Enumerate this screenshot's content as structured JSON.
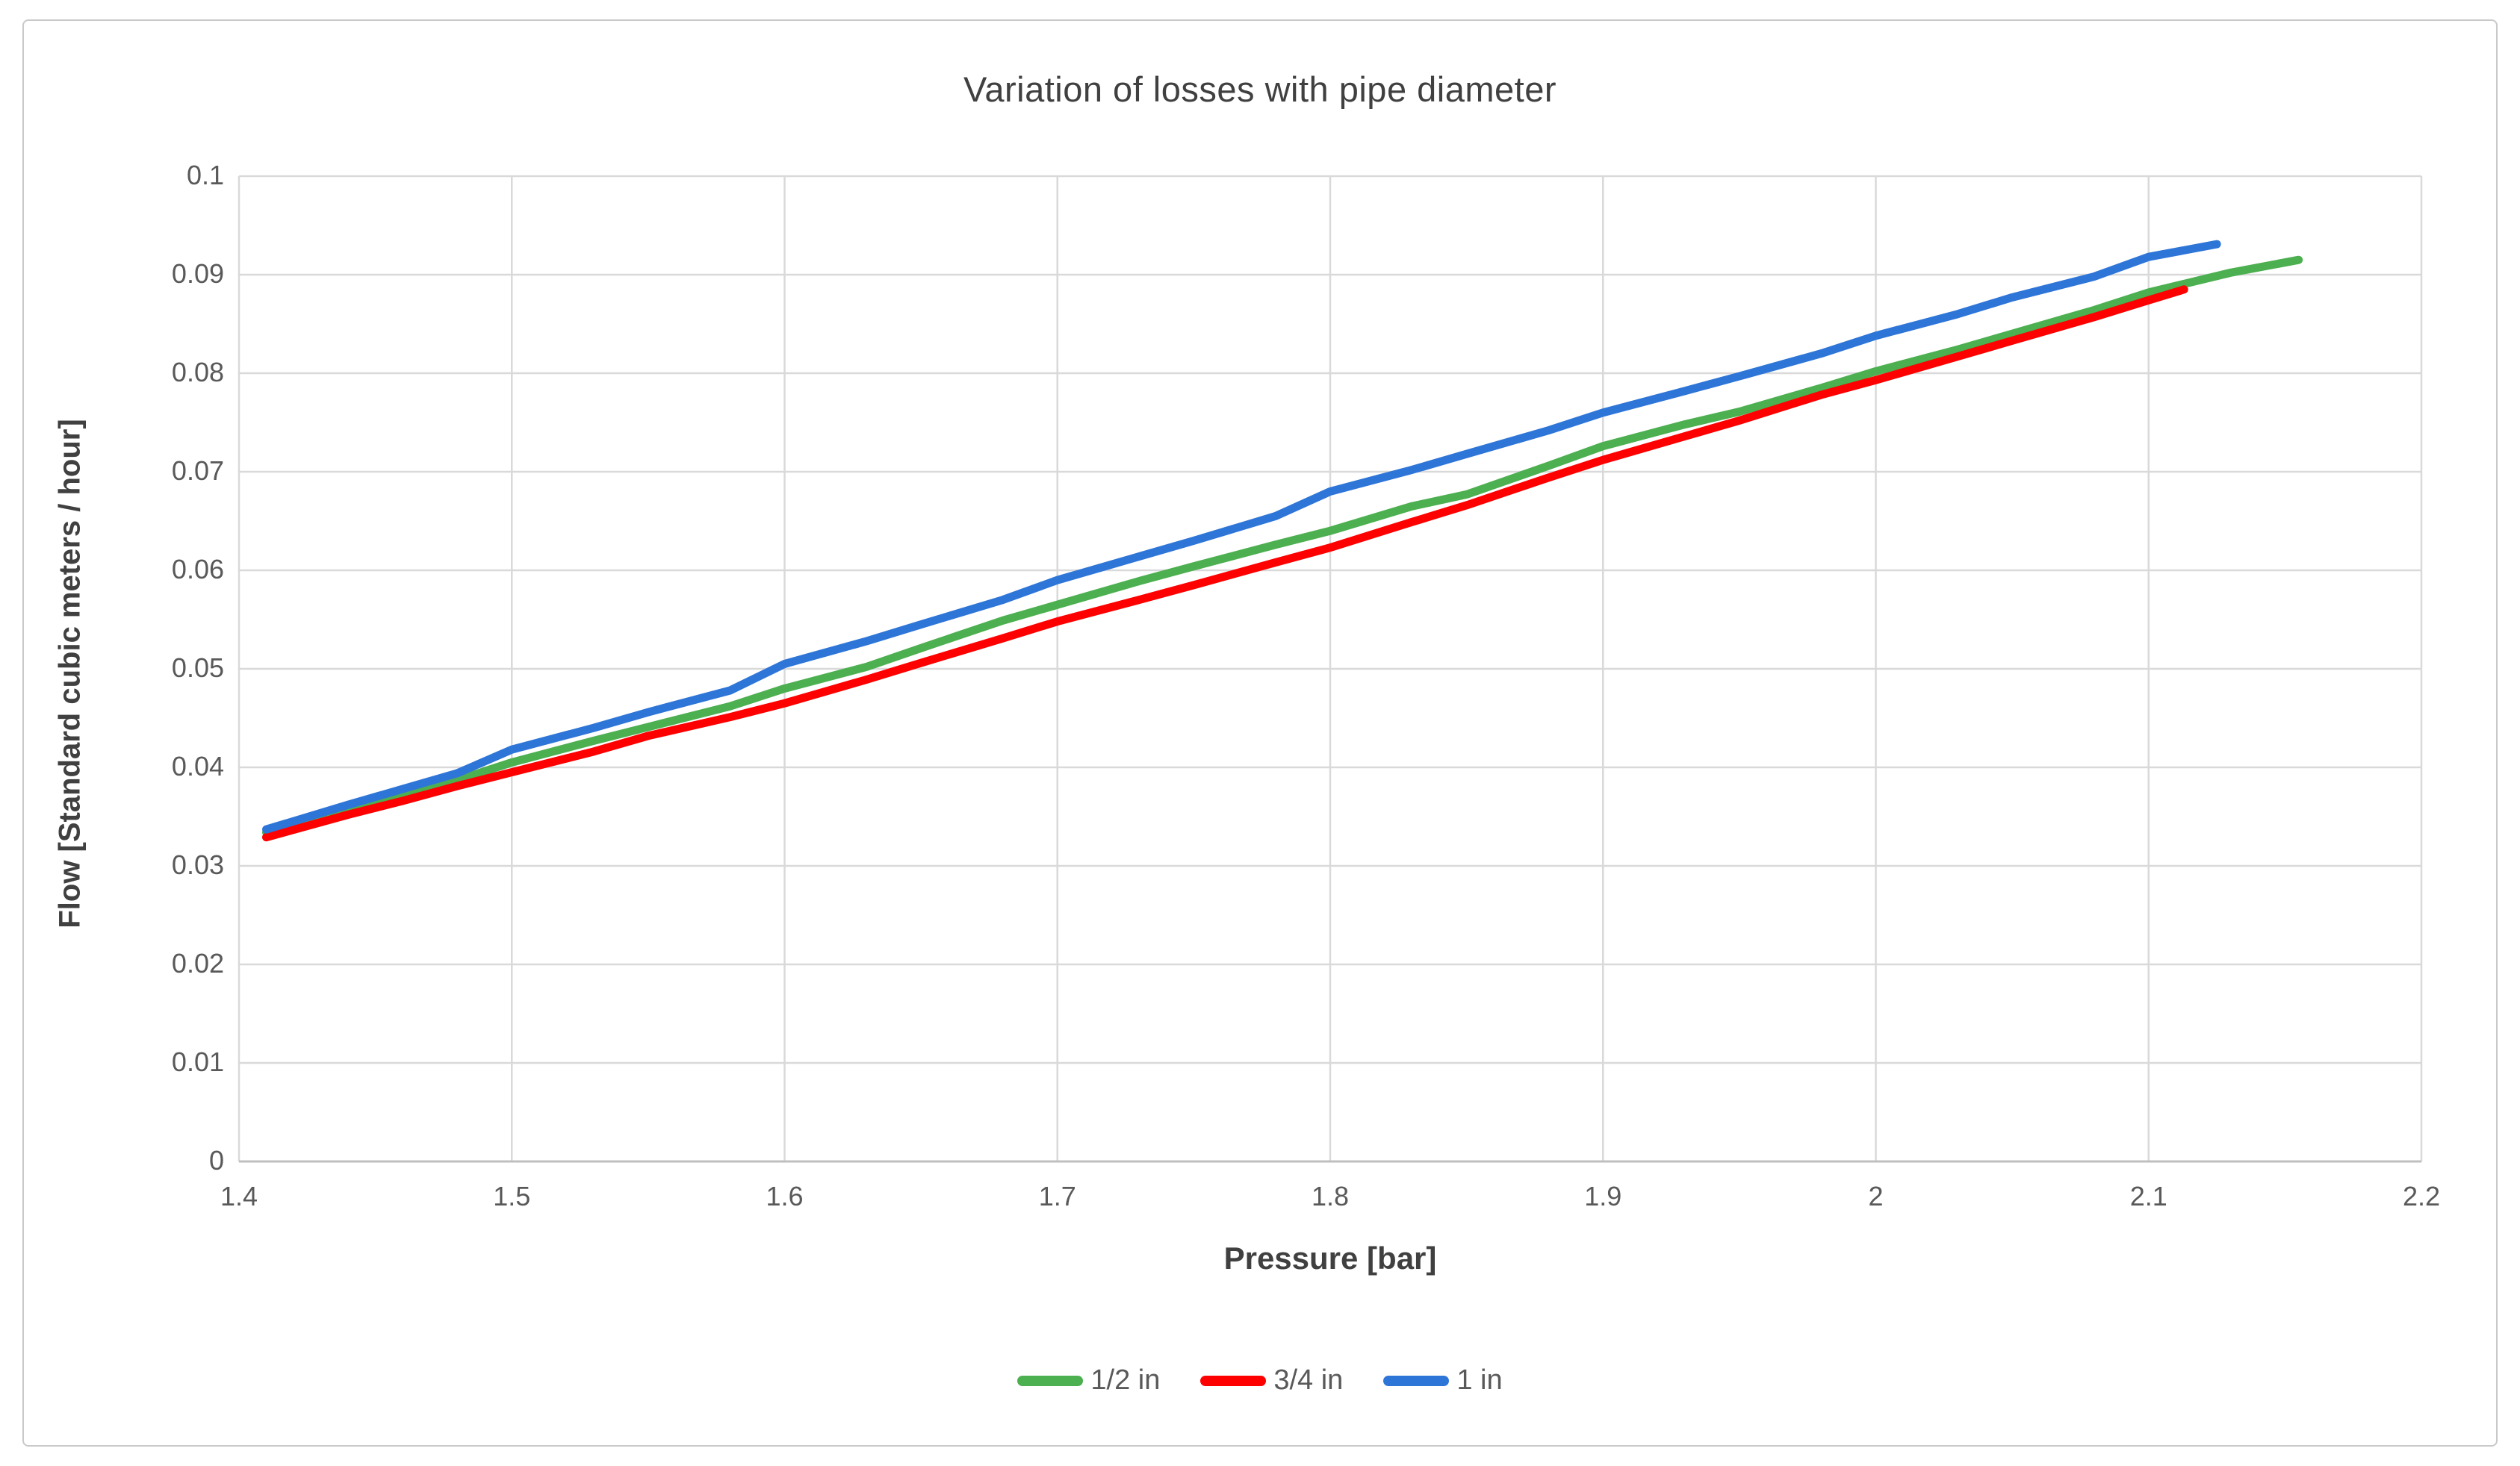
{
  "page": {
    "background": "#FFFFFF",
    "frame_border_color": "#C9C9C9"
  },
  "chart_data": {
    "type": "line",
    "title": "Variation of losses with pipe diameter",
    "xlabel": "Pressure [bar]",
    "ylabel": "Flow [Standard cubic meters / hour]",
    "xlim": [
      1.4,
      2.2
    ],
    "ylim": [
      0,
      0.1
    ],
    "grid": true,
    "gridline_color": "#D9D9D9",
    "legend_position": "bottom",
    "xticks": [
      {
        "v": 1.4,
        "label": "1.4"
      },
      {
        "v": 1.5,
        "label": "1.5"
      },
      {
        "v": 1.6,
        "label": "1.6"
      },
      {
        "v": 1.7,
        "label": "1.7"
      },
      {
        "v": 1.8,
        "label": "1.8"
      },
      {
        "v": 1.9,
        "label": "1.9"
      },
      {
        "v": 2.0,
        "label": "2"
      },
      {
        "v": 2.1,
        "label": "2.1"
      },
      {
        "v": 2.2,
        "label": "2.2"
      }
    ],
    "yticks": [
      {
        "v": 0.0,
        "label": "0"
      },
      {
        "v": 0.01,
        "label": "0.01"
      },
      {
        "v": 0.02,
        "label": "0.02"
      },
      {
        "v": 0.03,
        "label": "0.03"
      },
      {
        "v": 0.04,
        "label": "0.04"
      },
      {
        "v": 0.05,
        "label": "0.05"
      },
      {
        "v": 0.06,
        "label": "0.06"
      },
      {
        "v": 0.07,
        "label": "0.07"
      },
      {
        "v": 0.08,
        "label": "0.08"
      },
      {
        "v": 0.09,
        "label": "0.09"
      },
      {
        "v": 0.1,
        "label": "0.1"
      }
    ],
    "series": [
      {
        "name": "1/2 in",
        "color": "#4CAF50",
        "points": [
          [
            1.41,
            0.0334
          ],
          [
            1.44,
            0.0357
          ],
          [
            1.46,
            0.0372
          ],
          [
            1.48,
            0.0387
          ],
          [
            1.5,
            0.0405
          ],
          [
            1.53,
            0.0427
          ],
          [
            1.55,
            0.0441
          ],
          [
            1.58,
            0.0462
          ],
          [
            1.6,
            0.048
          ],
          [
            1.63,
            0.0502
          ],
          [
            1.65,
            0.0521
          ],
          [
            1.68,
            0.0549
          ],
          [
            1.7,
            0.0565
          ],
          [
            1.73,
            0.0589
          ],
          [
            1.75,
            0.0604
          ],
          [
            1.78,
            0.0626
          ],
          [
            1.8,
            0.064
          ],
          [
            1.83,
            0.0665
          ],
          [
            1.85,
            0.0677
          ],
          [
            1.88,
            0.0706
          ],
          [
            1.9,
            0.0726
          ],
          [
            1.93,
            0.0748
          ],
          [
            1.95,
            0.0761
          ],
          [
            1.98,
            0.0785
          ],
          [
            2.0,
            0.0802
          ],
          [
            2.03,
            0.0824
          ],
          [
            2.05,
            0.084
          ],
          [
            2.08,
            0.0864
          ],
          [
            2.1,
            0.0882
          ],
          [
            2.13,
            0.0902
          ],
          [
            2.155,
            0.0915
          ]
        ]
      },
      {
        "name": "3/4 in",
        "color": "#FF0000",
        "points": [
          [
            1.41,
            0.0329
          ],
          [
            1.44,
            0.0352
          ],
          [
            1.46,
            0.0366
          ],
          [
            1.48,
            0.0381
          ],
          [
            1.5,
            0.0395
          ],
          [
            1.53,
            0.0416
          ],
          [
            1.55,
            0.0432
          ],
          [
            1.58,
            0.0451
          ],
          [
            1.6,
            0.0465
          ],
          [
            1.63,
            0.0489
          ],
          [
            1.65,
            0.0506
          ],
          [
            1.68,
            0.0531
          ],
          [
            1.7,
            0.0548
          ],
          [
            1.73,
            0.057
          ],
          [
            1.75,
            0.0585
          ],
          [
            1.78,
            0.0608
          ],
          [
            1.8,
            0.0623
          ],
          [
            1.83,
            0.0649
          ],
          [
            1.85,
            0.0666
          ],
          [
            1.88,
            0.0694
          ],
          [
            1.9,
            0.0712
          ],
          [
            1.93,
            0.0736
          ],
          [
            1.95,
            0.0752
          ],
          [
            1.98,
            0.0778
          ],
          [
            2.0,
            0.0793
          ],
          [
            2.03,
            0.0817
          ],
          [
            2.05,
            0.0833
          ],
          [
            2.08,
            0.0857
          ],
          [
            2.1,
            0.0874
          ],
          [
            2.113,
            0.0885
          ]
        ]
      },
      {
        "name": "1 in",
        "color": "#2E75D8",
        "points": [
          [
            1.41,
            0.0337
          ],
          [
            1.44,
            0.0362
          ],
          [
            1.46,
            0.0378
          ],
          [
            1.48,
            0.0394
          ],
          [
            1.5,
            0.0418
          ],
          [
            1.53,
            0.044
          ],
          [
            1.55,
            0.0456
          ],
          [
            1.58,
            0.0478
          ],
          [
            1.6,
            0.0505
          ],
          [
            1.63,
            0.0528
          ],
          [
            1.65,
            0.0545
          ],
          [
            1.68,
            0.057
          ],
          [
            1.7,
            0.059
          ],
          [
            1.73,
            0.0614
          ],
          [
            1.75,
            0.063
          ],
          [
            1.78,
            0.0655
          ],
          [
            1.8,
            0.068
          ],
          [
            1.83,
            0.0702
          ],
          [
            1.85,
            0.0718
          ],
          [
            1.88,
            0.0742
          ],
          [
            1.9,
            0.076
          ],
          [
            1.93,
            0.0782
          ],
          [
            1.95,
            0.0797
          ],
          [
            1.98,
            0.082
          ],
          [
            2.0,
            0.0838
          ],
          [
            2.03,
            0.086
          ],
          [
            2.05,
            0.0877
          ],
          [
            2.08,
            0.0898
          ],
          [
            2.1,
            0.0918
          ],
          [
            2.125,
            0.0931
          ]
        ]
      }
    ]
  }
}
